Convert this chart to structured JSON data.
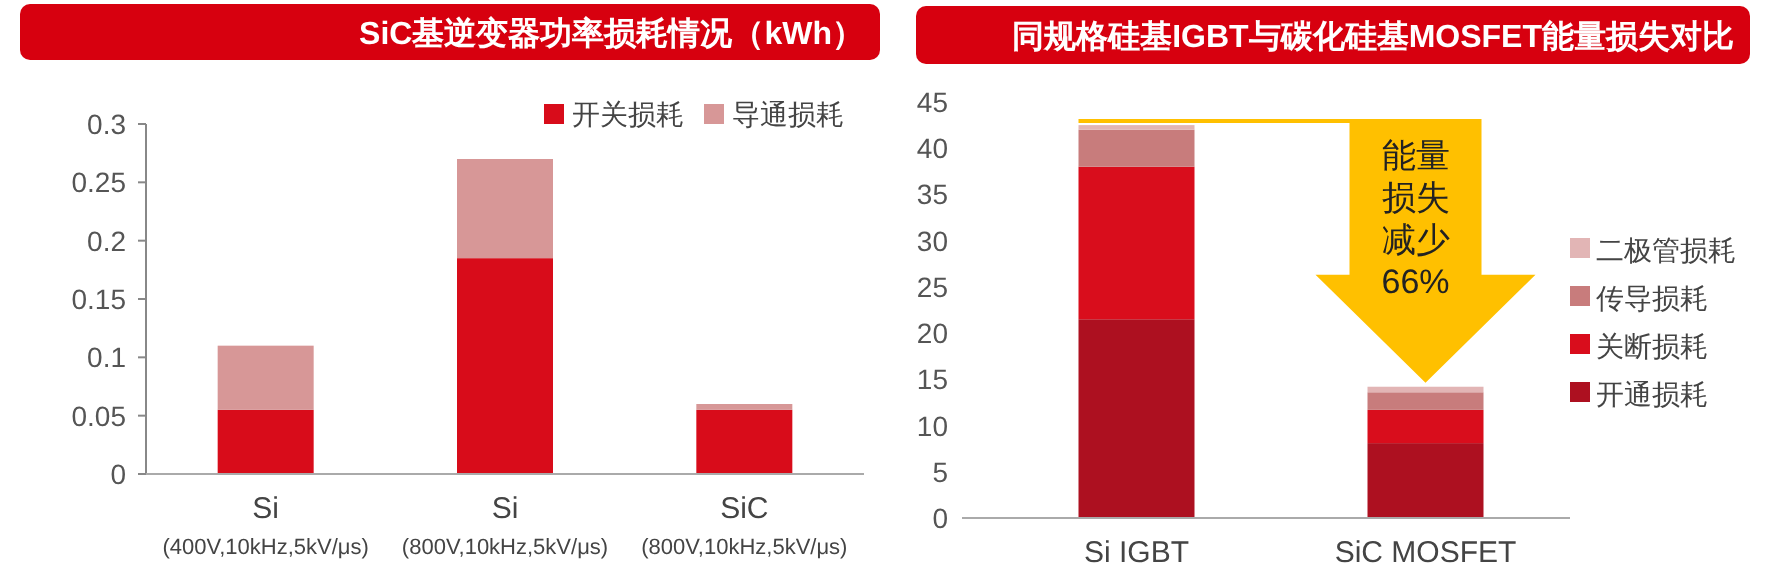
{
  "chart_data": [
    {
      "type": "bar",
      "title": "SiC基逆变器功率损耗情况（kWh）",
      "categories": [
        "Si\n(400V,10kHz,5kV/μs)",
        "Si\n(800V,10kHz,5kV/μs)",
        "SiC\n(800V,10kHz,5kV/μs)"
      ],
      "stacked": true,
      "ylim": [
        0,
        0.3
      ],
      "yticks": [
        0,
        0.05,
        0.1,
        0.15,
        0.2,
        0.25,
        0.3
      ],
      "legend": "top right",
      "series": [
        {
          "name": "开关损耗",
          "color": "#d80c1a",
          "values": [
            0.055,
            0.185,
            0.055
          ]
        },
        {
          "name": "导通损耗",
          "color": "#d79797",
          "values": [
            0.055,
            0.085,
            0.005
          ]
        }
      ]
    },
    {
      "type": "bar",
      "title": "同规格硅基IGBT与碳化硅基MOSFET能量损失对比",
      "categories": [
        "Si IGBT",
        "SiC MOSFET"
      ],
      "stacked": true,
      "ylim": [
        0,
        45
      ],
      "yticks": [
        0,
        5,
        10,
        15,
        20,
        25,
        30,
        35,
        40,
        45
      ],
      "legend": "right",
      "annotations": [
        "能量损失减少66%"
      ],
      "series": [
        {
          "name": "开通损耗",
          "color": "#ad1020",
          "values": [
            21.5,
            8.1
          ]
        },
        {
          "name": "关断损耗",
          "color": "#d90d1c",
          "values": [
            16.5,
            3.6
          ]
        },
        {
          "name": "传导损耗",
          "color": "#c87c7c",
          "values": [
            4,
            1.9
          ]
        },
        {
          "name": "二极管损耗",
          "color": "#e2b5b5",
          "values": [
            0.5,
            0.6
          ]
        }
      ]
    }
  ]
}
